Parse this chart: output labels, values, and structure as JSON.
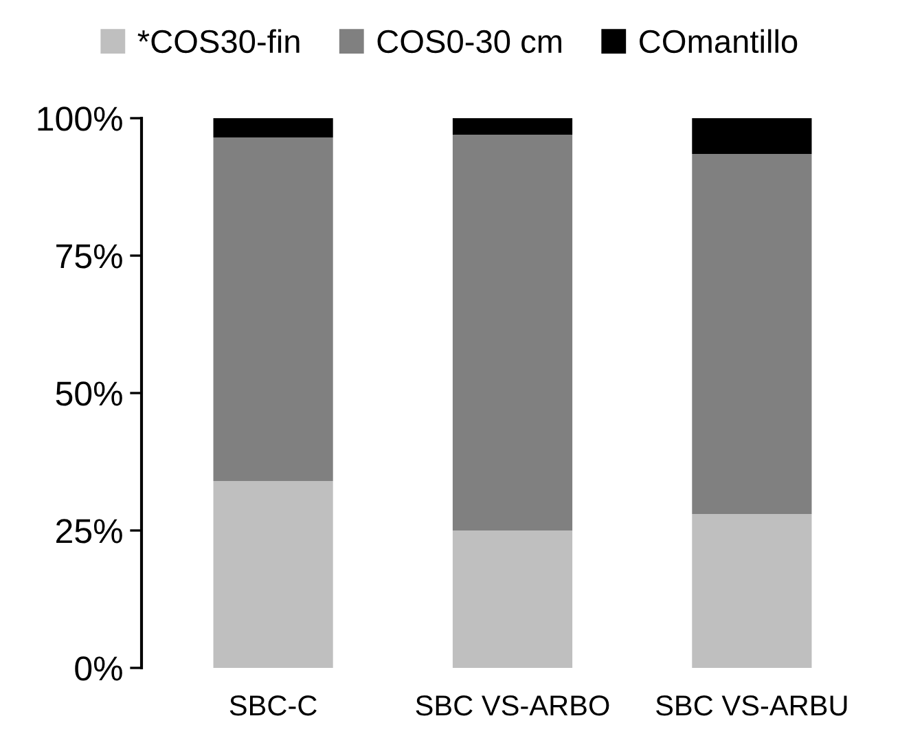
{
  "chart_data": {
    "type": "bar",
    "stacked": true,
    "categories": [
      "SBC-C",
      "SBC VS-ARBO",
      "SBC VS-ARBU"
    ],
    "series": [
      {
        "name": "*COS30-fin",
        "color": "#bfbfbf",
        "values": [
          34,
          25,
          28
        ]
      },
      {
        "name": "COS0-30 cm",
        "color": "#808080",
        "values": [
          62.5,
          72,
          65.5
        ]
      },
      {
        "name": "COmantillo",
        "color": "#000000",
        "values": [
          3.5,
          3,
          6.5
        ]
      }
    ],
    "ylim": [
      0,
      100
    ],
    "yticks": [
      {
        "value": 0,
        "label": "0%"
      },
      {
        "value": 25,
        "label": "25%"
      },
      {
        "value": 50,
        "label": "50%"
      },
      {
        "value": 75,
        "label": "75%"
      },
      {
        "value": 100,
        "label": "100%"
      }
    ],
    "grid": false,
    "legend": "top"
  }
}
